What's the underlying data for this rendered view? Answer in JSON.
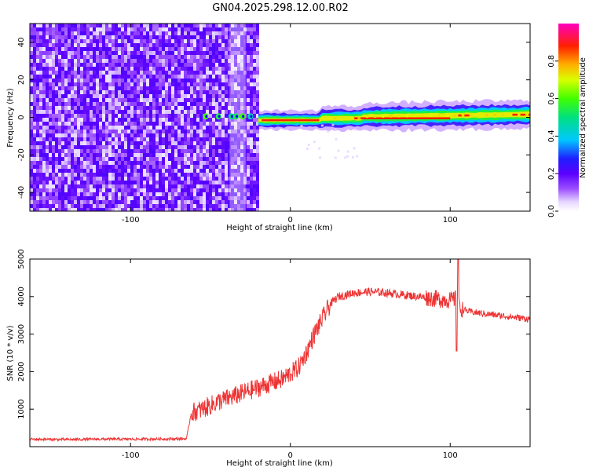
{
  "figure": {
    "title": "GN04.2025.298.12.00.R02"
  },
  "colors": {
    "snr_line": "#ee3333",
    "frame": "#000000",
    "spectrogram_bg": "#ffffff"
  },
  "chart_data": [
    {
      "type": "heatmap",
      "title": "GN04.2025.298.12.00.R02",
      "xlabel": "Height of straight line (km)",
      "ylabel": "Frequency (Hz)",
      "xlim": [
        -163,
        150
      ],
      "ylim": [
        -50,
        50
      ],
      "x_ticks": [
        -100,
        0,
        100
      ],
      "y_ticks": [
        -40,
        -20,
        0,
        20,
        40
      ],
      "colorbar": {
        "label": "Normalized spectral amplitude",
        "range": [
          0.0,
          1.0
        ],
        "ticks": [
          0.0,
          0.2,
          0.4,
          0.6,
          0.8
        ],
        "colormap": "rainbow (white-violet-blue-cyan-green-yellow-orange-red-magenta)"
      },
      "regions": [
        {
          "x_range": [
            -163,
            -20
          ],
          "description": "noise",
          "amplitude": [
            0.02,
            0.2
          ]
        },
        {
          "x_range": [
            -20,
            150
          ],
          "description": "carrier near 0 Hz",
          "amplitude": [
            0.5,
            0.95
          ]
        }
      ],
      "grid": false
    },
    {
      "type": "line",
      "xlabel": "Height of straight line (km)",
      "ylabel": "SNR (10 * v/v)",
      "xlim": [
        -163,
        150
      ],
      "ylim": [
        0,
        5000
      ],
      "x_ticks": [
        -100,
        0,
        100
      ],
      "y_ticks": [
        1000,
        2000,
        3000,
        4000,
        5000
      ],
      "series": [
        {
          "x": [
            -163,
            -140,
            -120,
            -100,
            -80,
            -65,
            -62,
            -55,
            -45,
            -35,
            -25,
            -15,
            -5,
            5,
            10,
            15,
            20,
            25,
            30,
            40,
            50,
            60,
            70,
            80,
            90,
            100,
            104,
            106,
            108,
            112,
            120,
            130,
            140,
            150
          ],
          "y": [
            200,
            190,
            200,
            200,
            205,
            210,
            900,
            1000,
            1200,
            1350,
            1500,
            1650,
            1800,
            2100,
            2500,
            3000,
            3400,
            3800,
            4000,
            4100,
            4130,
            4100,
            4050,
            4000,
            3950,
            3900,
            3950,
            3700,
            3650,
            3600,
            3550,
            3500,
            3450,
            3400
          ]
        }
      ],
      "grid": false
    }
  ]
}
